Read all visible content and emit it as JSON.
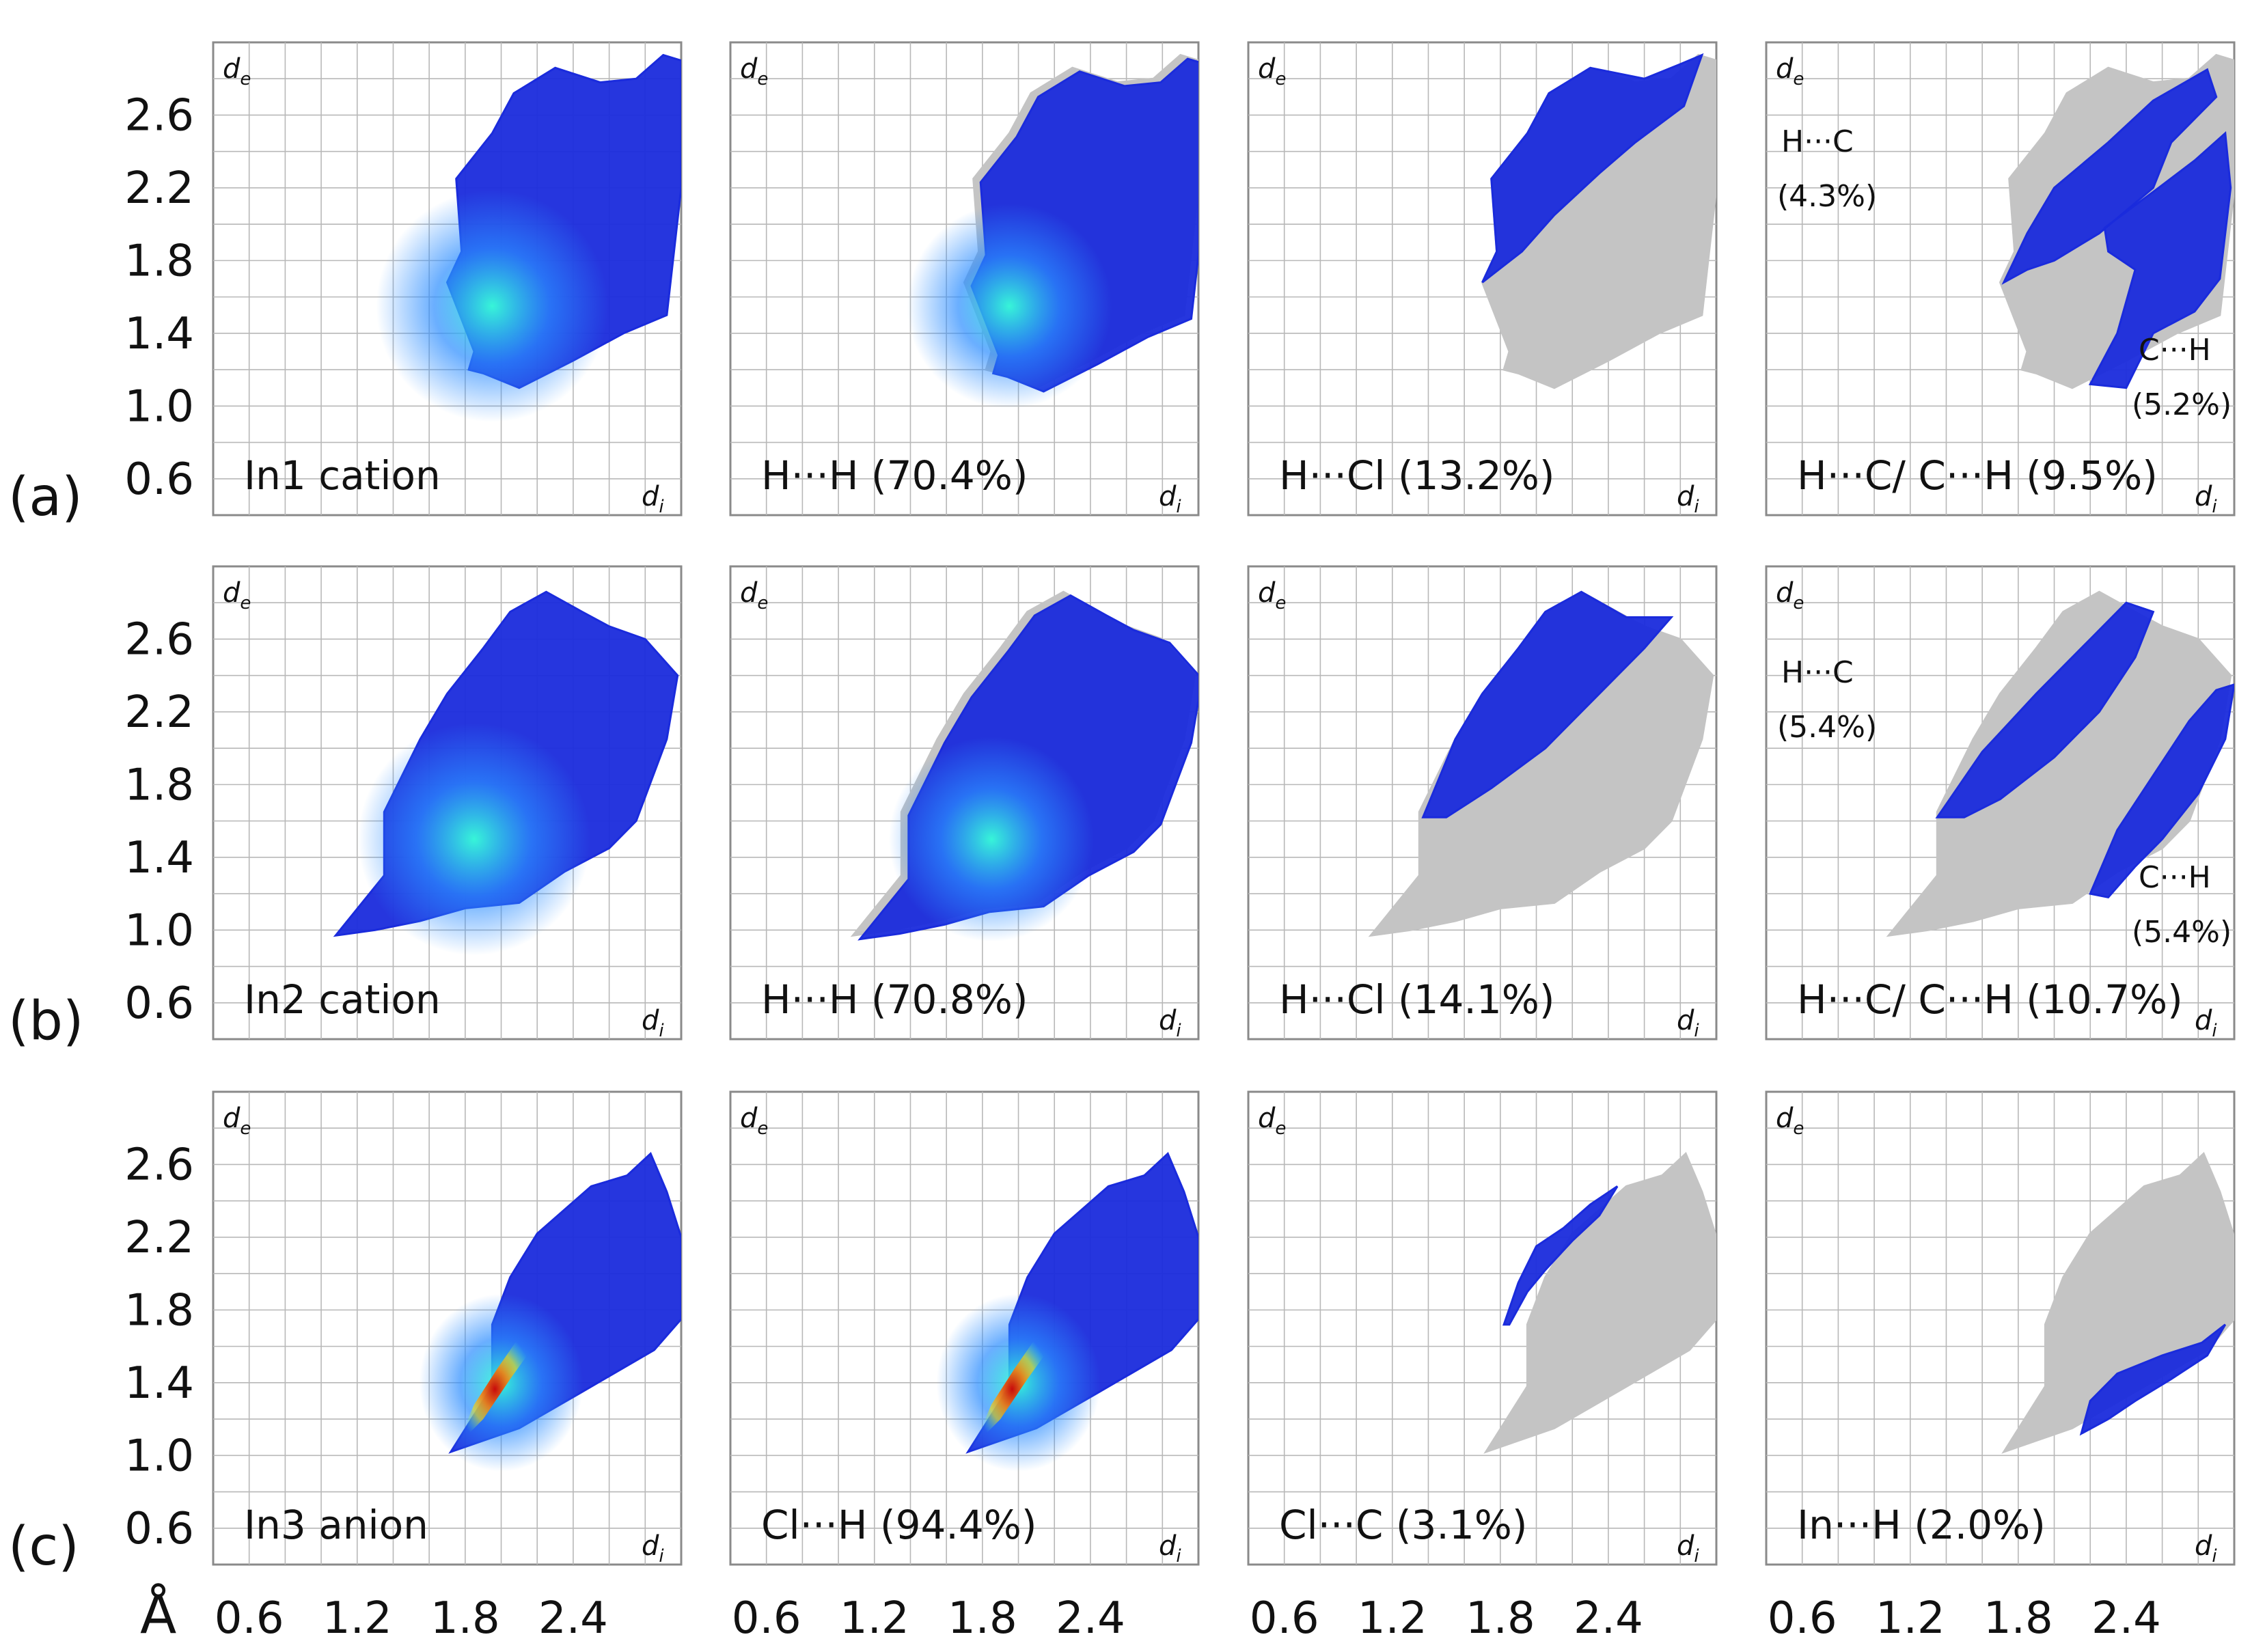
{
  "chart_data": {
    "type": "scatter",
    "description_kind": "Hirshfeld 2D fingerprint plots",
    "x_axis": {
      "label": "d",
      "subscript": "i",
      "unit": "Å",
      "range": [
        0.4,
        3.0
      ],
      "ticks": [
        0.6,
        1.2,
        1.8,
        2.4
      ],
      "tick_labels": [
        "0.6",
        "1.2",
        "1.8",
        "2.4"
      ]
    },
    "y_axis": {
      "label": "d",
      "subscript": "e",
      "range": [
        0.4,
        3.0
      ],
      "ticks": [
        0.6,
        1.0,
        1.4,
        1.8,
        2.2,
        2.6
      ],
      "tick_labels": [
        "0.6",
        "1.0",
        "1.4",
        "1.8",
        "2.2",
        "2.6"
      ]
    },
    "unit_label": "Å",
    "rows": [
      {
        "label": "(a)",
        "panels": [
          {
            "label": "In1 cation",
            "highlight": "full",
            "contact": "all",
            "percent": null
          },
          {
            "label": "H···H (70.4%)",
            "highlight": "hh",
            "contact": "H···H",
            "percent": 70.4
          },
          {
            "label": "H···Cl (13.2%)",
            "highlight": "hcl",
            "contact": "H···Cl",
            "percent": 13.2
          },
          {
            "label": "H···C/ C···H (9.5%)",
            "highlight": "hc",
            "contact": "H···C/C···H",
            "percent": 9.5,
            "annotations": [
              "H···C",
              "(4.3%)",
              "C···H",
              "(5.2%)"
            ]
          }
        ]
      },
      {
        "label": "(b)",
        "panels": [
          {
            "label": "In2 cation",
            "highlight": "full",
            "contact": "all",
            "percent": null
          },
          {
            "label": "H···H (70.8%)",
            "highlight": "hh",
            "contact": "H···H",
            "percent": 70.8
          },
          {
            "label": "H···Cl (14.1%)",
            "highlight": "hcl",
            "contact": "H···Cl",
            "percent": 14.1
          },
          {
            "label": "H···C/ C···H (10.7%)",
            "highlight": "hc",
            "contact": "H···C/C···H",
            "percent": 10.7,
            "annotations": [
              "H···C",
              "(5.4%)",
              "C···H",
              "(5.4%)"
            ]
          }
        ]
      },
      {
        "label": "(c)",
        "panels": [
          {
            "label": "In3 anion",
            "highlight": "full",
            "contact": "all",
            "percent": null
          },
          {
            "label": "Cl···H (94.4%)",
            "highlight": "full",
            "contact": "Cl···H",
            "percent": 94.4
          },
          {
            "label": "Cl···C (3.1%)",
            "highlight": "clc",
            "contact": "Cl···C",
            "percent": 3.1
          },
          {
            "label": "In···H (2.0%)",
            "highlight": "inh",
            "contact": "In···H",
            "percent": 2.0
          }
        ]
      }
    ],
    "colors": {
      "low": "#1a2bdc",
      "mid": "#2a8cff",
      "high": "#38ffd8",
      "peak": "#ff7a00",
      "hot": "#d00000",
      "gray": "#c4c4c4",
      "grid": "#b8b8b8",
      "frame": "#8a8a8a"
    }
  }
}
